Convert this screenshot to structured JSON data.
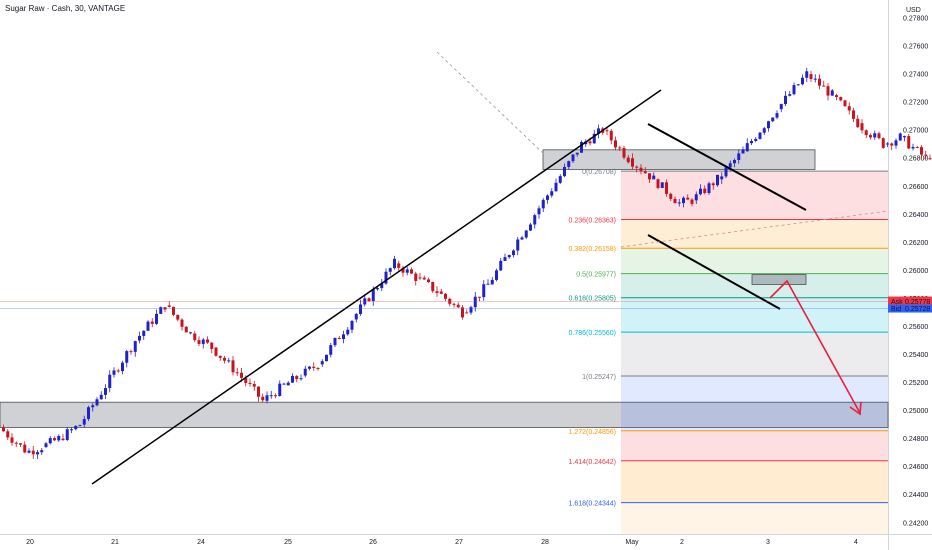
{
  "header": {
    "title": "Sugar Raw · Cash, 30, VANTAGE"
  },
  "price_axis": {
    "currency": "USD",
    "ticks": [
      "0.27800",
      "0.27600",
      "0.27400",
      "0.27200",
      "0.27000",
      "0.26800",
      "0.26600",
      "0.26400",
      "0.26200",
      "0.26000",
      "0.25800",
      "0.25600",
      "0.25400",
      "0.25200",
      "0.25000",
      "0.24800",
      "0.24600",
      "0.24400",
      "0.24200"
    ],
    "ask_label": "Ask",
    "ask_value": "0.25778",
    "bid_label": "Bid",
    "bid_value": "0.25728",
    "colors": {
      "ask": "#f23645",
      "bid": "#2962ff"
    }
  },
  "time_axis": {
    "labels": [
      "20",
      "21",
      "24",
      "25",
      "26",
      "27",
      "28",
      "May",
      "2",
      "3",
      "4"
    ]
  },
  "colors": {
    "up": "#1e23c8",
    "down": "#c8141e",
    "trendline": "#000000",
    "arrow": "#e8203a"
  },
  "chart_data": {
    "type": "candlestick",
    "title": "Sugar Raw · Cash, 30, VANTAGE",
    "ylabel": "USD",
    "ylim": [
      0.2412,
      0.279
    ],
    "x_categories": [
      "20",
      "21",
      "24",
      "25",
      "26",
      "27",
      "28",
      "May",
      "2",
      "3",
      "4"
    ],
    "price_path": [
      [
        0.2488,
        0.2472
      ],
      [
        0.247,
        0.2474
      ],
      [
        0.2474,
        0.248
      ],
      [
        0.248,
        0.249
      ],
      [
        0.249,
        0.255
      ],
      [
        0.255,
        0.2575
      ],
      [
        0.2575,
        0.2555
      ],
      [
        0.2555,
        0.2545
      ],
      [
        0.2545,
        0.2527
      ],
      [
        0.2527,
        0.2507
      ],
      [
        0.2507,
        0.2518
      ],
      [
        0.2518,
        0.2525
      ],
      [
        0.2525,
        0.2533
      ],
      [
        0.2533,
        0.2565
      ],
      [
        0.2565,
        0.2605
      ],
      [
        0.2605,
        0.2595
      ],
      [
        0.2595,
        0.2585
      ],
      [
        0.2585,
        0.257
      ],
      [
        0.257,
        0.259
      ],
      [
        0.259,
        0.264
      ],
      [
        0.264,
        0.269
      ],
      [
        0.269,
        0.27
      ],
      [
        0.27,
        0.268
      ],
      [
        0.268,
        0.2665
      ],
      [
        0.2665,
        0.2648
      ],
      [
        0.2648,
        0.265
      ],
      [
        0.265,
        0.2665
      ],
      [
        0.2665,
        0.2685
      ],
      [
        0.2685,
        0.2715
      ],
      [
        0.2715,
        0.274
      ],
      [
        0.274,
        0.2725
      ],
      [
        0.2725,
        0.2705
      ],
      [
        0.2705,
        0.269
      ],
      [
        0.269,
        0.2695
      ],
      [
        0.2695,
        0.268
      ],
      [
        0.268,
        0.2695
      ],
      [
        0.2695,
        0.27
      ],
      [
        0.27,
        0.2705
      ],
      [
        0.2705,
        0.2685
      ],
      [
        0.2685,
        0.265
      ],
      [
        0.265,
        0.2625
      ],
      [
        0.2625,
        0.2615
      ],
      [
        0.2615,
        0.264
      ],
      [
        0.264,
        0.265
      ],
      [
        0.265,
        0.266
      ],
      [
        0.266,
        0.2665
      ],
      [
        0.2665,
        0.265
      ],
      [
        0.265,
        0.2615
      ],
      [
        0.2615,
        0.2595
      ],
      [
        0.2595,
        0.2598
      ],
      [
        0.2598,
        0.2592
      ],
      [
        0.2592,
        0.2572
      ]
    ],
    "levels": [
      {
        "label": "0.236(0.26363)",
        "value": 0.26363,
        "color": "#f23645"
      },
      {
        "label": "0.382(0.26158)",
        "value": 0.26158,
        "color": "#ff9800"
      },
      {
        "label": "0.5(0.25977)",
        "value": 0.25977,
        "color": "#4caf50"
      },
      {
        "label": "0.618(0.25805)",
        "value": 0.25805,
        "color": "#089981"
      },
      {
        "label": "0.786(0.25560)",
        "value": 0.2556,
        "color": "#00bcd4"
      },
      {
        "label": "1(0.25247)",
        "value": 0.25247,
        "color": "#787b86"
      },
      {
        "label": "1.272(0.24856)",
        "value": 0.24856,
        "color": "#ff9800"
      },
      {
        "label": "1.414(0.24642)",
        "value": 0.24642,
        "color": "#f23645"
      },
      {
        "label": "1.618(0.24344)",
        "value": 0.24344,
        "color": "#2962ff"
      }
    ],
    "fib_anchor_label": "0(0.26708)",
    "fib_anchor_value": 0.26708,
    "fib_bands": [
      {
        "from": 0.26708,
        "to": 0.26363,
        "color": "#f23645",
        "opacity": 0.16
      },
      {
        "from": 0.26363,
        "to": 0.26158,
        "color": "#ff9800",
        "opacity": 0.16
      },
      {
        "from": 0.26158,
        "to": 0.25977,
        "color": "#4caf50",
        "opacity": 0.14
      },
      {
        "from": 0.25977,
        "to": 0.25805,
        "color": "#089981",
        "opacity": 0.16
      },
      {
        "from": 0.25805,
        "to": 0.2556,
        "color": "#00bcd4",
        "opacity": 0.18
      },
      {
        "from": 0.2556,
        "to": 0.25247,
        "color": "#787b86",
        "opacity": 0.14
      },
      {
        "from": 0.25247,
        "to": 0.24856,
        "color": "#2962ff",
        "opacity": 0.14
      },
      {
        "from": 0.24856,
        "to": 0.24642,
        "color": "#f23645",
        "opacity": 0.16
      },
      {
        "from": 0.24642,
        "to": 0.24344,
        "color": "#ff9800",
        "opacity": 0.18
      },
      {
        "from": 0.24344,
        "to": 0.2412,
        "color": "#ff9800",
        "opacity": 0.1
      }
    ],
    "zones": [
      {
        "y1": 0.2506,
        "y2": 0.2488,
        "color": "#787b86"
      },
      {
        "y1": 0.2686,
        "y2": 0.2672,
        "color": "#787b86"
      }
    ]
  }
}
